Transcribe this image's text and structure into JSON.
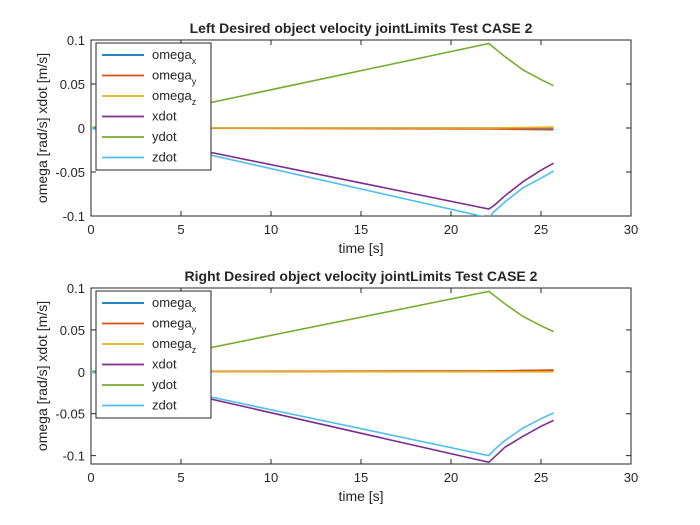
{
  "chart_data": [
    {
      "type": "line",
      "title": "Left Desired object velocity jointLimits Test CASE 2",
      "xlabel": "time [s]",
      "ylabel": "omega [rad/s] xdot [m/s]",
      "xlim": [
        0,
        30
      ],
      "ylim": [
        -0.1,
        0.1
      ],
      "xticks": [
        0,
        5,
        10,
        15,
        20,
        25,
        30
      ],
      "xtick_labels": [
        "0",
        "5",
        "10",
        "15",
        "20",
        "25",
        "30"
      ],
      "yticks": [
        0.1,
        0.05,
        0,
        -0.05,
        -0.1
      ],
      "ytick_labels": [
        "0.1",
        "0.05",
        "0",
        "-0.05",
        "-0.1"
      ],
      "grid": false,
      "legend_position": "top-left",
      "series": [
        {
          "name": "omega",
          "subscript": "x",
          "color": "#0072BD",
          "x": [
            0,
            22.2,
            25.7
          ],
          "y": [
            0.0,
            0.0,
            0.0
          ]
        },
        {
          "name": "omega",
          "subscript": "y",
          "color": "#D95319",
          "x": [
            0,
            22.2,
            25.7
          ],
          "y": [
            0.0,
            -0.001,
            -0.002
          ]
        },
        {
          "name": "omega",
          "subscript": "z",
          "color": "#EDB120",
          "x": [
            0,
            22.2,
            25.7
          ],
          "y": [
            0.0,
            0.0,
            0.001
          ]
        },
        {
          "name": "xdot",
          "subscript": "",
          "color": "#7E2F8E",
          "x": [
            0,
            22.1,
            22.4,
            23,
            24,
            25,
            25.7
          ],
          "y": [
            0.0,
            -0.092,
            -0.088,
            -0.077,
            -0.061,
            -0.048,
            -0.04
          ]
        },
        {
          "name": "ydot",
          "subscript": "",
          "color": "#77AC30",
          "x": [
            0,
            22.1,
            22.4,
            23,
            24,
            25,
            25.7
          ],
          "y": [
            0.0,
            0.096,
            0.091,
            0.081,
            0.066,
            0.055,
            0.048
          ]
        },
        {
          "name": "zdot",
          "subscript": "",
          "color": "#4DBEEE",
          "x": [
            0,
            22.1,
            22.4,
            23,
            24,
            25,
            25.7
          ],
          "y": [
            0.0,
            -0.102,
            -0.095,
            -0.084,
            -0.068,
            -0.057,
            -0.049
          ]
        }
      ]
    },
    {
      "type": "line",
      "title": "Right Desired object velocity jointLimits Test CASE 2",
      "xlabel": "time [s]",
      "ylabel": "omega [rad/s] xdot [m/s]",
      "xlim": [
        0,
        30
      ],
      "ylim": [
        -0.11,
        0.1
      ],
      "xticks": [
        0,
        5,
        10,
        15,
        20,
        25,
        30
      ],
      "xtick_labels": [
        "0",
        "5",
        "10",
        "15",
        "20",
        "25",
        "30"
      ],
      "yticks": [
        0.1,
        0.05,
        0,
        -0.05,
        -0.1
      ],
      "ytick_labels": [
        "0.1",
        "0.05",
        "0",
        "-0.05",
        "-0.1"
      ],
      "grid": false,
      "legend_position": "top-left",
      "series": [
        {
          "name": "omega",
          "subscript": "x",
          "color": "#0072BD",
          "x": [
            0,
            22.2,
            25.7
          ],
          "y": [
            0.0,
            0.001,
            0.002
          ]
        },
        {
          "name": "omega",
          "subscript": "y",
          "color": "#D95319",
          "x": [
            0,
            22.2,
            25.7
          ],
          "y": [
            0.0,
            0.001,
            0.002
          ]
        },
        {
          "name": "omega",
          "subscript": "z",
          "color": "#EDB120",
          "x": [
            0,
            22.2,
            25.7
          ],
          "y": [
            0.0,
            0.0,
            0.0
          ]
        },
        {
          "name": "xdot",
          "subscript": "",
          "color": "#7E2F8E",
          "x": [
            0,
            22.1,
            22.4,
            23,
            24,
            25,
            25.7
          ],
          "y": [
            0.0,
            -0.108,
            -0.102,
            -0.09,
            -0.077,
            -0.065,
            -0.058
          ]
        },
        {
          "name": "ydot",
          "subscript": "",
          "color": "#77AC30",
          "x": [
            0,
            22.1,
            22.4,
            23,
            24,
            25,
            25.7
          ],
          "y": [
            0.0,
            0.096,
            0.091,
            0.081,
            0.066,
            0.055,
            0.048
          ]
        },
        {
          "name": "zdot",
          "subscript": "",
          "color": "#4DBEEE",
          "x": [
            0,
            22.1,
            22.4,
            23,
            24,
            25,
            25.7
          ],
          "y": [
            0.0,
            -0.1,
            -0.093,
            -0.082,
            -0.067,
            -0.056,
            -0.049
          ]
        }
      ]
    }
  ]
}
